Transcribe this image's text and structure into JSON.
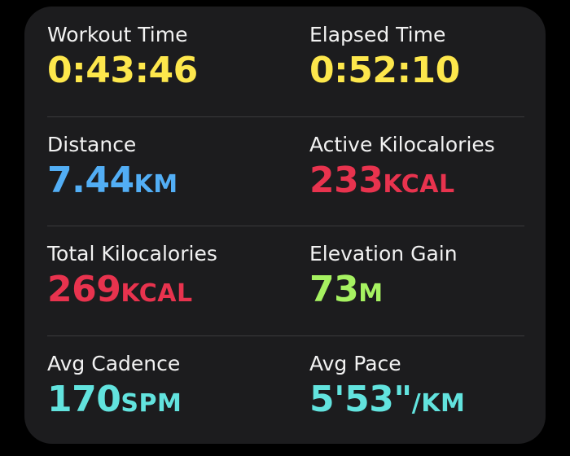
{
  "metrics": [
    [
      {
        "label": "Workout Time",
        "value": "0:43:46",
        "color": "#fde74c"
      },
      {
        "label": "Elapsed Time",
        "value": "0:52:10",
        "color": "#fde74c"
      }
    ],
    [
      {
        "label": "Distance",
        "value": "7.44",
        "unit": "KM",
        "color": "#52aef5"
      },
      {
        "label": "Active Kilocalories",
        "value": "233",
        "unit": "KCAL",
        "color": "#e8334e"
      }
    ],
    [
      {
        "label": "Total Kilocalories",
        "value": "269",
        "unit": "KCAL",
        "color": "#e8334e"
      },
      {
        "label": "Elevation Gain",
        "value": "73",
        "unit": "M",
        "color": "#a6f261"
      }
    ],
    [
      {
        "label": "Avg Cadence",
        "value": "170",
        "unit": "SPM",
        "color": "#62e3de"
      },
      {
        "label": "Avg Pace",
        "value": "5'53\"",
        "unit": "/KM",
        "color": "#62e3de"
      }
    ]
  ]
}
